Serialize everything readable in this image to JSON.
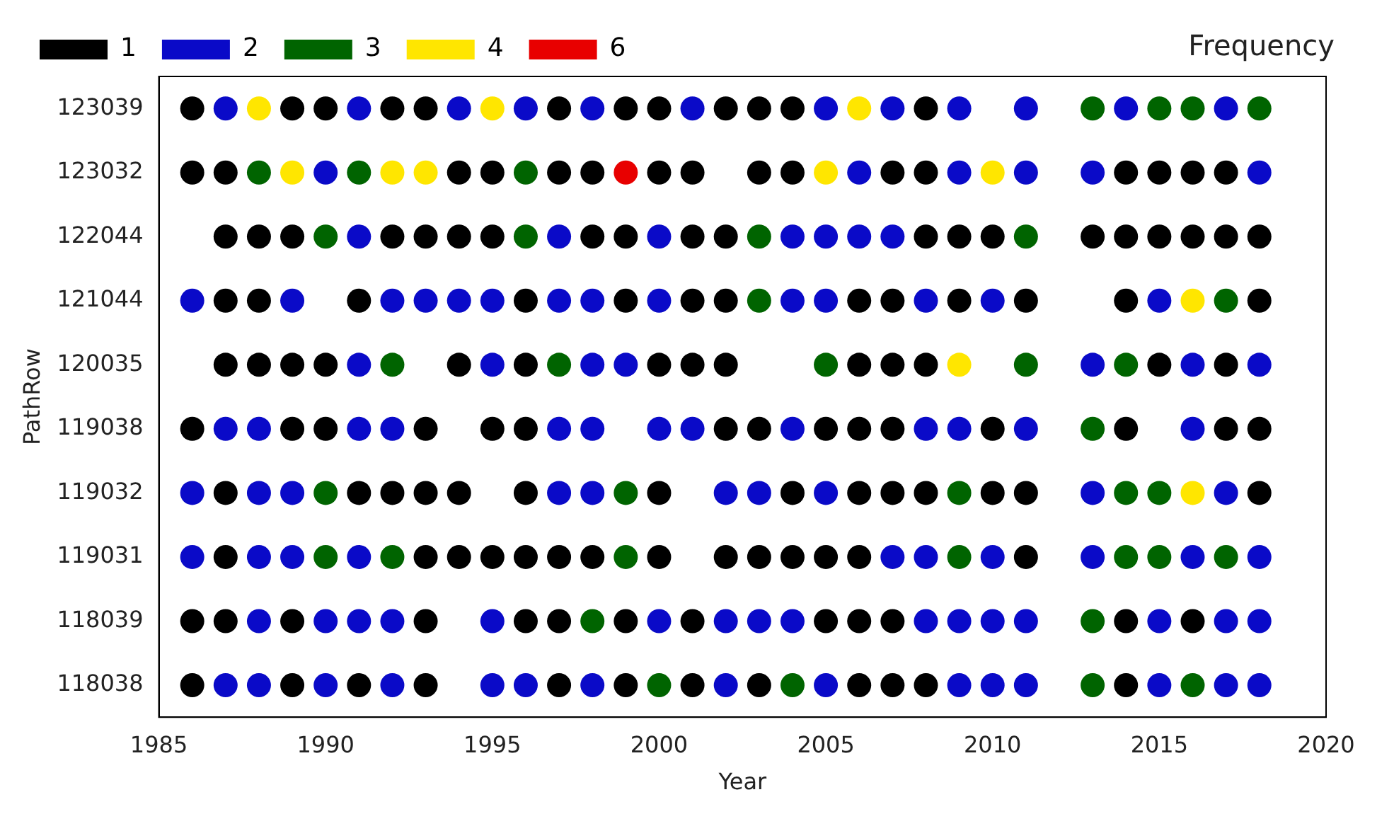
{
  "chart_data": {
    "type": "scatter",
    "orientation": "horizontal",
    "xlabel": "Year",
    "ylabel": "PathRow",
    "legend_title": "Frequency",
    "legend": "top",
    "marker": "circle",
    "categories": [
      "123039",
      "123032",
      "122044",
      "121044",
      "120035",
      "119038",
      "119032",
      "119031",
      "118039",
      "118038"
    ],
    "xlim": [
      1985,
      2020
    ],
    "xticks": [
      1985,
      1990,
      1995,
      2000,
      2005,
      2010,
      2015,
      2020
    ],
    "series": [
      {
        "name": "1",
        "color": "#000000",
        "values": [
          1986,
          1989,
          1990,
          1992,
          1993,
          1997,
          1999,
          2000,
          2002,
          2003,
          2004,
          2008,
          1986,
          1987,
          1994,
          1995,
          1997,
          1998,
          2000,
          2001,
          2003,
          2004,
          2007,
          2008,
          2014,
          2015,
          2016,
          2017,
          1987,
          1988,
          1989,
          1992,
          1993,
          1994,
          1995,
          1998,
          1999,
          2001,
          2002,
          2008,
          2009,
          2010,
          2013,
          2014,
          2015,
          2016,
          2017,
          2018,
          1987,
          1988,
          1991,
          1996,
          1999,
          2001,
          2002,
          2006,
          2007,
          2009,
          2011,
          2014,
          2018,
          1987,
          1988,
          1989,
          1990,
          1994,
          1996,
          2000,
          2001,
          2002,
          2006,
          2007,
          2008,
          2015,
          2017,
          1986,
          1989,
          1990,
          1993,
          1995,
          1996,
          2002,
          2003,
          2005,
          2006,
          2007,
          2010,
          2014,
          2017,
          2018,
          1987,
          1991,
          1992,
          1993,
          1994,
          1996,
          2000,
          2004,
          2006,
          2007,
          2008,
          2010,
          2011,
          2018,
          1987,
          1993,
          1994,
          1995,
          1996,
          1997,
          1998,
          2000,
          2002,
          2003,
          2004,
          2005,
          2006,
          2011,
          1986,
          1987,
          1989,
          1993,
          1996,
          1997,
          1999,
          2001,
          2005,
          2006,
          2007,
          2014,
          2016,
          1986,
          1989,
          1991,
          1993,
          1997,
          1999,
          2001,
          2003,
          2006,
          2007,
          2008,
          2014
        ],
        "x": [
          "123039",
          "123039",
          "123039",
          "123039",
          "123039",
          "123039",
          "123039",
          "123039",
          "123039",
          "123039",
          "123039",
          "123039",
          "123032",
          "123032",
          "123032",
          "123032",
          "123032",
          "123032",
          "123032",
          "123032",
          "123032",
          "123032",
          "123032",
          "123032",
          "123032",
          "123032",
          "123032",
          "123032",
          "122044",
          "122044",
          "122044",
          "122044",
          "122044",
          "122044",
          "122044",
          "122044",
          "122044",
          "122044",
          "122044",
          "122044",
          "122044",
          "122044",
          "122044",
          "122044",
          "122044",
          "122044",
          "122044",
          "122044",
          "121044",
          "121044",
          "121044",
          "121044",
          "121044",
          "121044",
          "121044",
          "121044",
          "121044",
          "121044",
          "121044",
          "121044",
          "121044",
          "120035",
          "120035",
          "120035",
          "120035",
          "120035",
          "120035",
          "120035",
          "120035",
          "120035",
          "120035",
          "120035",
          "120035",
          "120035",
          "120035",
          "119038",
          "119038",
          "119038",
          "119038",
          "119038",
          "119038",
          "119038",
          "119038",
          "119038",
          "119038",
          "119038",
          "119038",
          "119038",
          "119038",
          "119038",
          "119032",
          "119032",
          "119032",
          "119032",
          "119032",
          "119032",
          "119032",
          "119032",
          "119032",
          "119032",
          "119032",
          "119032",
          "119032",
          "119032",
          "119031",
          "119031",
          "119031",
          "119031",
          "119031",
          "119031",
          "119031",
          "119031",
          "119031",
          "119031",
          "119031",
          "119031",
          "119031",
          "119031",
          "118039",
          "118039",
          "118039",
          "118039",
          "118039",
          "118039",
          "118039",
          "118039",
          "118039",
          "118039",
          "118039",
          "118039",
          "118039",
          "118038",
          "118038",
          "118038",
          "118038",
          "118038",
          "118038",
          "118038",
          "118038",
          "118038",
          "118038",
          "118038",
          "118038"
        ]
      },
      {
        "name": "2",
        "color": "#0a0ac8",
        "values": [
          1987,
          1991,
          1994,
          1996,
          1998,
          2001,
          2005,
          2007,
          2009,
          2011,
          2014,
          2017,
          1990,
          2006,
          2009,
          2011,
          2013,
          2018,
          1991,
          1997,
          2000,
          2004,
          2005,
          2006,
          2007,
          1986,
          1989,
          1992,
          1993,
          1994,
          1995,
          1997,
          1998,
          2000,
          2004,
          2005,
          2008,
          2010,
          2015,
          1991,
          1995,
          1998,
          1999,
          2013,
          2016,
          2018,
          1987,
          1988,
          1991,
          1992,
          1997,
          1998,
          2000,
          2001,
          2004,
          2008,
          2009,
          2011,
          2016,
          1986,
          1988,
          1989,
          1997,
          1998,
          2002,
          2003,
          2005,
          2013,
          2017,
          1986,
          1988,
          1989,
          1991,
          2007,
          2008,
          2010,
          2013,
          2016,
          2018,
          1988,
          1990,
          1991,
          1992,
          1995,
          2000,
          2002,
          2003,
          2004,
          2008,
          2009,
          2010,
          2011,
          2015,
          2017,
          2018,
          1987,
          1988,
          1990,
          1992,
          1995,
          1996,
          1998,
          2002,
          2005,
          2009,
          2010,
          2011,
          2015,
          2017,
          2018
        ],
        "x": [
          "123039",
          "123039",
          "123039",
          "123039",
          "123039",
          "123039",
          "123039",
          "123039",
          "123039",
          "123039",
          "123039",
          "123039",
          "123032",
          "123032",
          "123032",
          "123032",
          "123032",
          "123032",
          "122044",
          "122044",
          "122044",
          "122044",
          "122044",
          "122044",
          "122044",
          "121044",
          "121044",
          "121044",
          "121044",
          "121044",
          "121044",
          "121044",
          "121044",
          "121044",
          "121044",
          "121044",
          "121044",
          "121044",
          "121044",
          "120035",
          "120035",
          "120035",
          "120035",
          "120035",
          "120035",
          "120035",
          "119038",
          "119038",
          "119038",
          "119038",
          "119038",
          "119038",
          "119038",
          "119038",
          "119038",
          "119038",
          "119038",
          "119038",
          "119038",
          "119032",
          "119032",
          "119032",
          "119032",
          "119032",
          "119032",
          "119032",
          "119032",
          "119032",
          "119032",
          "119031",
          "119031",
          "119031",
          "119031",
          "119031",
          "119031",
          "119031",
          "119031",
          "119031",
          "119031",
          "118039",
          "118039",
          "118039",
          "118039",
          "118039",
          "118039",
          "118039",
          "118039",
          "118039",
          "118039",
          "118039",
          "118039",
          "118039",
          "118039",
          "118039",
          "118039",
          "118038",
          "118038",
          "118038",
          "118038",
          "118038",
          "118038",
          "118038",
          "118038",
          "118038",
          "118038",
          "118038",
          "118038",
          "118038",
          "118038",
          "118038"
        ]
      },
      {
        "name": "3",
        "color": "#006400",
        "values": [
          2013,
          2015,
          2016,
          2018,
          1988,
          1991,
          1996,
          1990,
          1996,
          2003,
          2011,
          2003,
          2017,
          1992,
          1997,
          2005,
          2011,
          2014,
          2013,
          1990,
          1999,
          2009,
          2014,
          2015,
          1990,
          1992,
          1999,
          2009,
          2014,
          2015,
          2017,
          1998,
          2013,
          2000,
          2004,
          2013,
          2016
        ],
        "x": [
          "123039",
          "123039",
          "123039",
          "123039",
          "123032",
          "123032",
          "123032",
          "122044",
          "122044",
          "122044",
          "122044",
          "121044",
          "121044",
          "120035",
          "120035",
          "120035",
          "120035",
          "120035",
          "119038",
          "119032",
          "119032",
          "119032",
          "119032",
          "119032",
          "119031",
          "119031",
          "119031",
          "119031",
          "119031",
          "119031",
          "119031",
          "118039",
          "118039",
          "118038",
          "118038",
          "118038",
          "118038"
        ]
      },
      {
        "name": "4",
        "color": "#ffe600",
        "values": [
          1988,
          1995,
          2006,
          1989,
          1992,
          1993,
          2005,
          2010,
          2016,
          2009,
          2016
        ],
        "x": [
          "123039",
          "123039",
          "123039",
          "123032",
          "123032",
          "123032",
          "123032",
          "123032",
          "121044",
          "120035",
          "119032"
        ]
      },
      {
        "name": "6",
        "color": "#e80000",
        "values": [
          1999
        ],
        "x": [
          "123032"
        ]
      }
    ]
  }
}
